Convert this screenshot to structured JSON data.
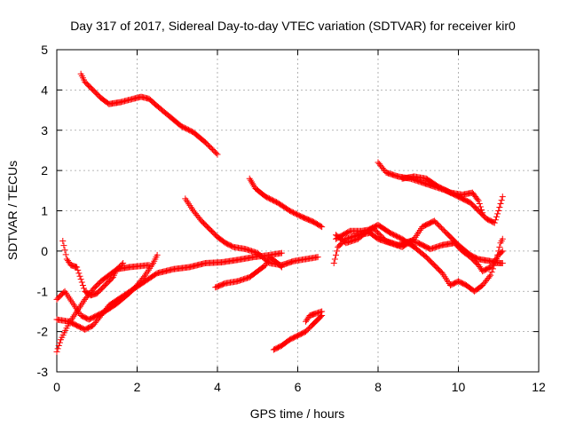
{
  "chart_data": {
    "type": "scatter",
    "title": "Day 317 of 2017, Sidereal Day-to-day VTEC variation (SDTVAR) for receiver kir0",
    "xlabel": "GPS time / hours",
    "ylabel": "SDTVAR / TECUs",
    "xlim": [
      0,
      12
    ],
    "ylim": [
      -3,
      5
    ],
    "x_ticks": [
      "0",
      "2",
      "4",
      "6",
      "8",
      "10",
      "12"
    ],
    "y_ticks": [
      "-3",
      "-2",
      "-1",
      "0",
      "1",
      "2",
      "3",
      "4",
      "5"
    ],
    "x_tick_values": [
      0,
      2,
      4,
      6,
      8,
      10,
      12
    ],
    "y_tick_values": [
      -3,
      -2,
      -1,
      0,
      1,
      2,
      3,
      4,
      5
    ],
    "grid": true,
    "marker": "plus",
    "marker_color": "#ff0000",
    "series": [
      {
        "points": [
          [
            0.6,
            4.4
          ],
          [
            0.7,
            4.2
          ],
          [
            0.9,
            4.0
          ],
          [
            1.1,
            3.8
          ],
          [
            1.3,
            3.65
          ],
          [
            1.6,
            3.7
          ],
          [
            1.9,
            3.78
          ],
          [
            2.1,
            3.83
          ],
          [
            2.3,
            3.78
          ],
          [
            2.5,
            3.6
          ],
          [
            2.8,
            3.35
          ],
          [
            3.1,
            3.1
          ],
          [
            3.4,
            2.95
          ],
          [
            3.7,
            2.7
          ],
          [
            4.0,
            2.4
          ]
        ]
      },
      {
        "points": [
          [
            0.0,
            -2.5
          ],
          [
            0.1,
            -2.2
          ],
          [
            0.3,
            -1.8
          ],
          [
            0.5,
            -1.5
          ],
          [
            0.7,
            -1.2
          ],
          [
            0.9,
            -0.95
          ],
          [
            1.1,
            -0.75
          ],
          [
            1.3,
            -0.6
          ],
          [
            1.5,
            -0.45
          ],
          [
            1.8,
            -0.4
          ],
          [
            2.0,
            -0.38
          ],
          [
            2.3,
            -0.35
          ]
        ]
      },
      {
        "points": [
          [
            0.0,
            -1.2
          ],
          [
            0.2,
            -1.0
          ],
          [
            0.4,
            -1.3
          ],
          [
            0.6,
            -1.6
          ],
          [
            0.8,
            -1.7
          ],
          [
            1.0,
            -1.6
          ],
          [
            1.2,
            -1.5
          ],
          [
            1.5,
            -1.3
          ],
          [
            1.8,
            -1.05
          ],
          [
            2.0,
            -0.85
          ],
          [
            2.2,
            -0.6
          ],
          [
            2.4,
            -0.3
          ],
          [
            2.5,
            -0.1
          ]
        ]
      },
      {
        "points": [
          [
            0.0,
            -1.7
          ],
          [
            0.3,
            -1.75
          ],
          [
            0.5,
            -1.85
          ],
          [
            0.7,
            -1.95
          ],
          [
            0.9,
            -1.85
          ],
          [
            1.1,
            -1.6
          ],
          [
            1.3,
            -1.35
          ],
          [
            1.6,
            -1.15
          ],
          [
            1.9,
            -0.95
          ],
          [
            2.2,
            -0.75
          ],
          [
            2.5,
            -0.55
          ],
          [
            2.9,
            -0.45
          ],
          [
            3.3,
            -0.4
          ],
          [
            3.7,
            -0.3
          ],
          [
            4.1,
            -0.28
          ],
          [
            4.5,
            -0.22
          ],
          [
            4.9,
            -0.15
          ],
          [
            5.3,
            -0.1
          ],
          [
            5.6,
            -0.05
          ]
        ]
      },
      {
        "points": [
          [
            0.15,
            0.25
          ],
          [
            0.25,
            -0.2
          ],
          [
            0.35,
            -0.35
          ],
          [
            0.5,
            -0.4
          ],
          [
            0.6,
            -0.7
          ],
          [
            0.7,
            -1.0
          ],
          [
            0.85,
            -1.1
          ],
          [
            1.0,
            -1.05
          ],
          [
            1.2,
            -0.85
          ],
          [
            1.4,
            -0.65
          ],
          [
            1.5,
            -0.45
          ],
          [
            1.65,
            -0.3
          ]
        ]
      },
      {
        "points": [
          [
            3.2,
            1.3
          ],
          [
            3.4,
            1.0
          ],
          [
            3.6,
            0.75
          ],
          [
            3.8,
            0.55
          ],
          [
            4.0,
            0.35
          ],
          [
            4.2,
            0.2
          ],
          [
            4.4,
            0.1
          ],
          [
            4.7,
            0.05
          ],
          [
            5.0,
            -0.05
          ],
          [
            5.3,
            -0.3
          ],
          [
            5.6,
            -0.35
          ],
          [
            5.9,
            -0.25
          ],
          [
            6.2,
            -0.2
          ],
          [
            6.5,
            -0.15
          ]
        ]
      },
      {
        "points": [
          [
            4.8,
            1.8
          ],
          [
            4.95,
            1.55
          ],
          [
            5.2,
            1.35
          ],
          [
            5.5,
            1.2
          ],
          [
            5.8,
            1.0
          ],
          [
            6.1,
            0.85
          ],
          [
            6.4,
            0.72
          ],
          [
            6.6,
            0.6
          ]
        ]
      },
      {
        "points": [
          [
            3.95,
            -0.9
          ],
          [
            4.2,
            -0.8
          ],
          [
            4.5,
            -0.75
          ],
          [
            4.8,
            -0.65
          ],
          [
            5.0,
            -0.5
          ],
          [
            5.2,
            -0.35
          ],
          [
            5.3,
            -0.15
          ],
          [
            5.5,
            -0.3
          ],
          [
            5.6,
            -0.4
          ]
        ]
      },
      {
        "points": [
          [
            5.4,
            -2.45
          ],
          [
            5.6,
            -2.35
          ],
          [
            5.8,
            -2.2
          ],
          [
            6.0,
            -2.1
          ],
          [
            6.2,
            -2.0
          ],
          [
            6.35,
            -1.85
          ],
          [
            6.5,
            -1.7
          ],
          [
            6.6,
            -1.6
          ]
        ]
      },
      {
        "points": [
          [
            6.2,
            -1.75
          ],
          [
            6.3,
            -1.6
          ],
          [
            6.45,
            -1.55
          ],
          [
            6.6,
            -1.5
          ]
        ]
      },
      {
        "points": [
          [
            6.9,
            -0.3
          ],
          [
            7.0,
            0.1
          ],
          [
            7.2,
            0.3
          ],
          [
            7.5,
            0.4
          ],
          [
            7.8,
            0.45
          ],
          [
            8.0,
            0.3
          ],
          [
            8.3,
            0.2
          ],
          [
            8.6,
            0.1
          ],
          [
            8.9,
            0.3
          ],
          [
            9.1,
            0.6
          ],
          [
            9.4,
            0.75
          ],
          [
            9.7,
            0.45
          ],
          [
            10.0,
            0.15
          ],
          [
            10.3,
            -0.1
          ],
          [
            10.5,
            -0.2
          ],
          [
            10.8,
            -0.25
          ],
          [
            11.0,
            -0.3
          ],
          [
            11.1,
            -0.3
          ]
        ]
      },
      {
        "points": [
          [
            6.95,
            0.4
          ],
          [
            7.2,
            0.2
          ],
          [
            7.5,
            0.3
          ],
          [
            7.8,
            0.55
          ],
          [
            8.0,
            0.65
          ],
          [
            8.3,
            0.45
          ],
          [
            8.6,
            0.3
          ],
          [
            8.9,
            0.1
          ],
          [
            9.2,
            -0.15
          ],
          [
            9.4,
            -0.35
          ],
          [
            9.6,
            -0.55
          ],
          [
            9.8,
            -0.85
          ],
          [
            10.0,
            -0.75
          ],
          [
            10.2,
            -0.85
          ],
          [
            10.4,
            -1.0
          ],
          [
            10.6,
            -0.85
          ],
          [
            10.8,
            -0.6
          ],
          [
            10.95,
            -0.2
          ],
          [
            11.05,
            0.2
          ],
          [
            11.1,
            0.3
          ]
        ]
      },
      {
        "points": [
          [
            8.0,
            2.2
          ],
          [
            8.2,
            1.95
          ],
          [
            8.5,
            1.85
          ],
          [
            8.8,
            1.8
          ],
          [
            9.1,
            1.7
          ],
          [
            9.4,
            1.6
          ],
          [
            9.7,
            1.5
          ],
          [
            10.0,
            1.35
          ],
          [
            10.3,
            1.2
          ],
          [
            10.5,
            1.0
          ],
          [
            10.7,
            0.8
          ],
          [
            10.9,
            0.7
          ],
          [
            11.0,
            1.0
          ],
          [
            11.1,
            1.35
          ]
        ]
      },
      {
        "points": [
          [
            8.6,
            1.8
          ],
          [
            8.9,
            1.85
          ],
          [
            9.2,
            1.8
          ],
          [
            9.5,
            1.6
          ],
          [
            9.8,
            1.45
          ],
          [
            10.1,
            1.4
          ],
          [
            10.35,
            1.45
          ],
          [
            10.5,
            1.25
          ],
          [
            10.6,
            0.95
          ]
        ]
      },
      {
        "points": [
          [
            6.95,
            0.3
          ],
          [
            7.3,
            0.5
          ],
          [
            7.6,
            0.5
          ],
          [
            7.9,
            0.55
          ],
          [
            8.2,
            0.25
          ],
          [
            8.5,
            0.15
          ],
          [
            8.8,
            0.25
          ],
          [
            9.0,
            0.2
          ],
          [
            9.3,
            0.05
          ],
          [
            9.6,
            0.15
          ],
          [
            9.9,
            0.2
          ],
          [
            10.1,
            0.0
          ],
          [
            10.3,
            -0.15
          ],
          [
            10.5,
            -0.35
          ],
          [
            10.6,
            -0.5
          ],
          [
            10.8,
            -0.4
          ],
          [
            11.0,
            -0.1
          ],
          [
            11.1,
            0.0
          ]
        ]
      }
    ]
  }
}
